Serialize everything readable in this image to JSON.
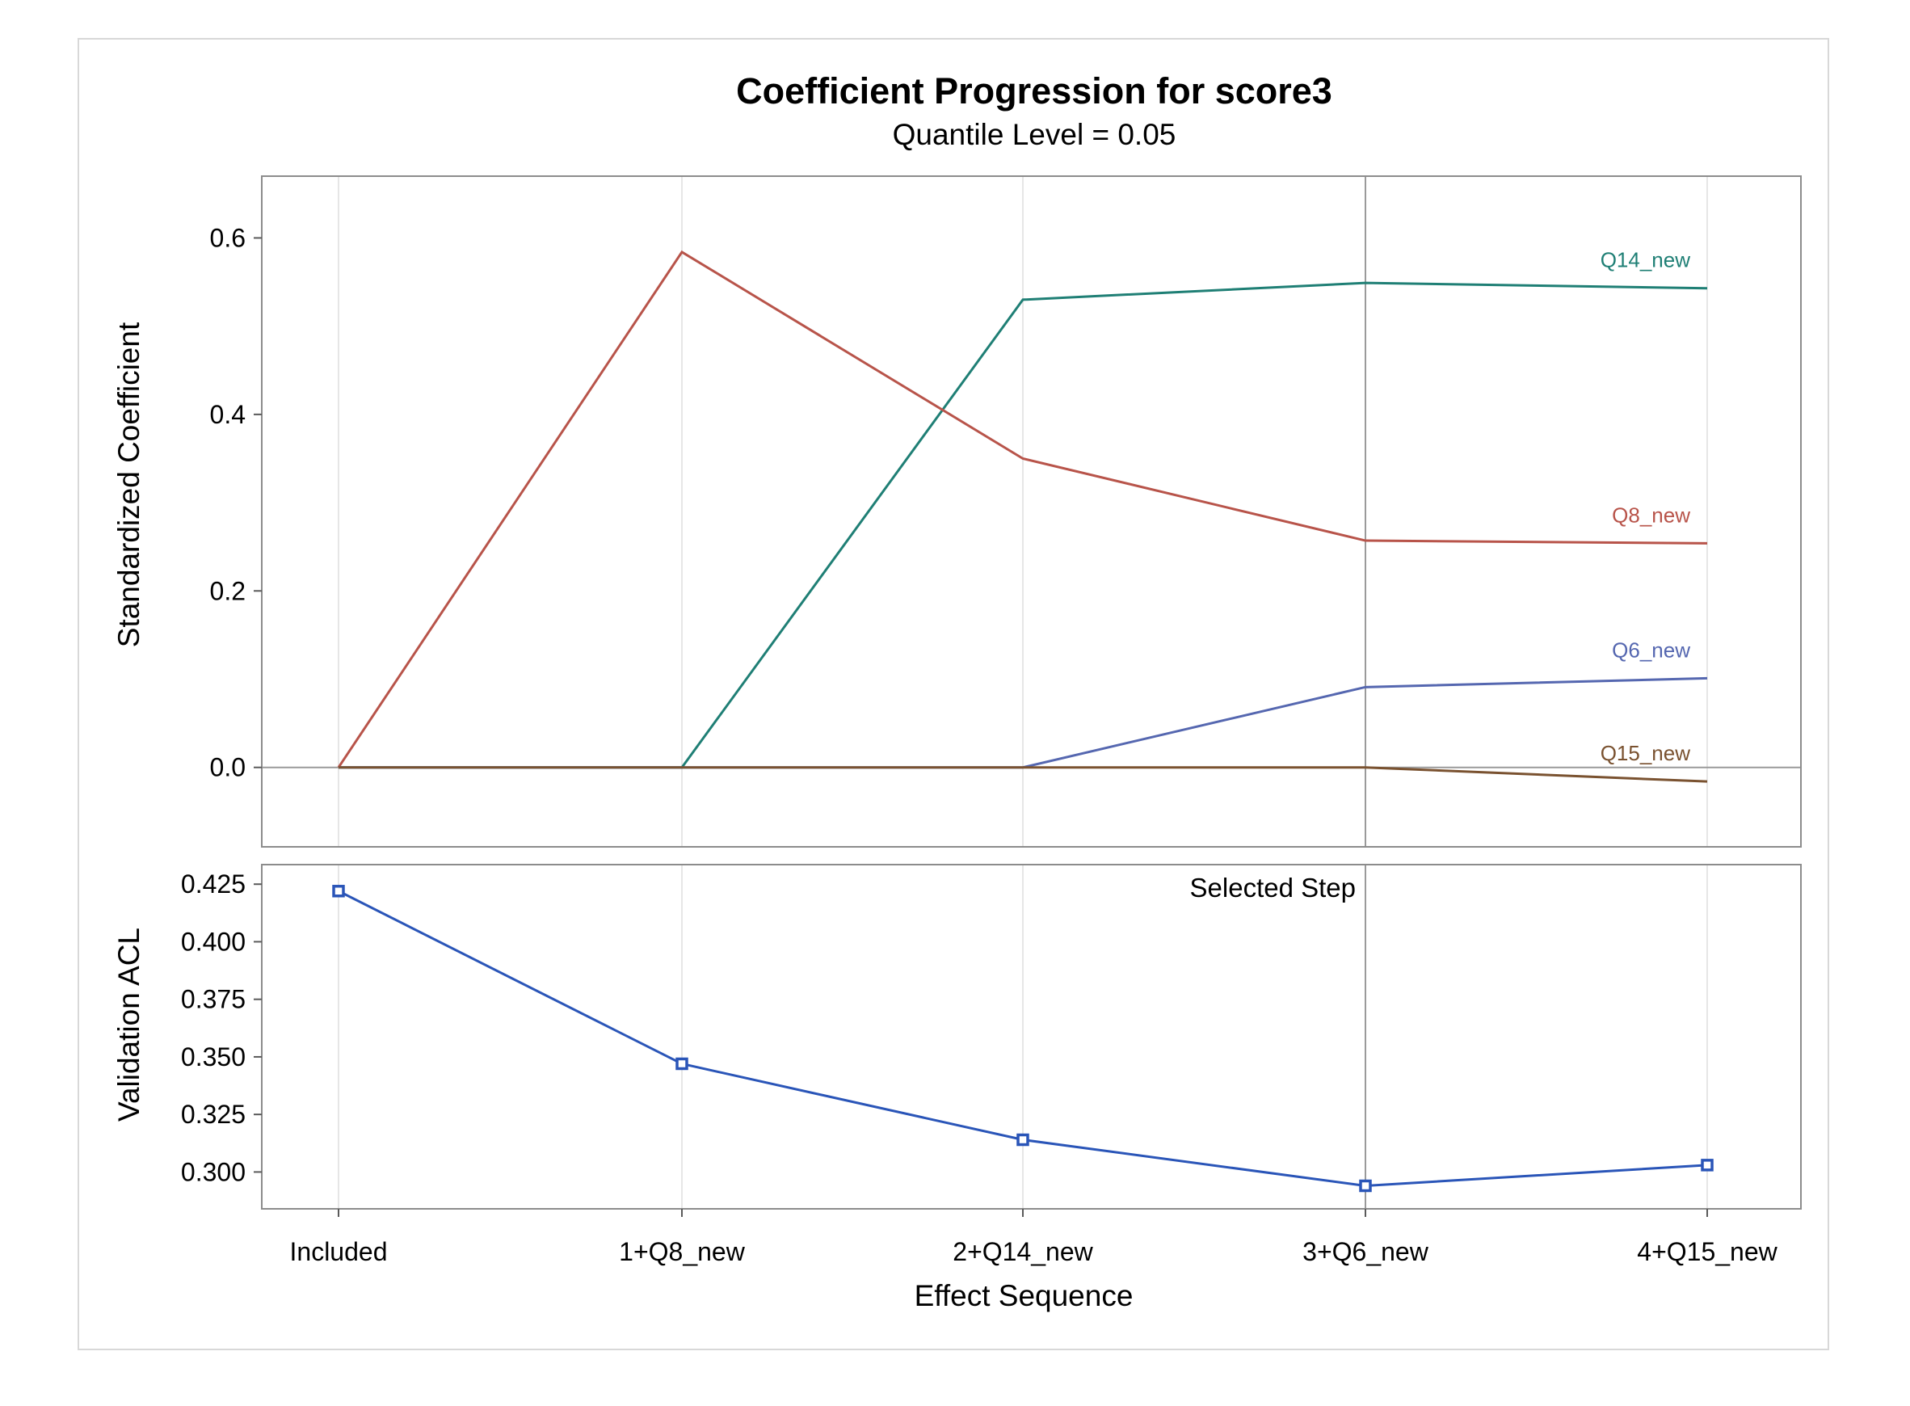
{
  "chart_data": {
    "type": "line",
    "title": "Coefficient Progression for score3",
    "subtitle": "Quantile Level = 0.05",
    "xlabel": "Effect Sequence",
    "categories": [
      "Included",
      "1+Q8_new",
      "2+Q14_new",
      "3+Q6_new",
      "4+Q15_new"
    ],
    "selected_step": "3+Q6_new",
    "selected_step_label": "Selected Step",
    "panels": [
      {
        "ylabel": "Standardized Coefficient",
        "ylim": [
          -0.09,
          0.67
        ],
        "yticks": [
          0.0,
          0.2,
          0.4,
          0.6
        ],
        "tick_labels": [
          "0.0",
          "0.2",
          "0.4",
          "0.6"
        ],
        "reference_line_y": 0.0,
        "series": [
          {
            "name": "Q14_new",
            "color": "#1f7f75",
            "values": [
              0.0,
              0.0,
              0.53,
              0.549,
              0.543
            ]
          },
          {
            "name": "Q8_new",
            "color": "#b8544a",
            "values": [
              0.0,
              0.584,
              0.35,
              0.257,
              0.254
            ]
          },
          {
            "name": "Q6_new",
            "color": "#5567b0",
            "values": [
              0.0,
              0.0,
              0.0,
              0.091,
              0.101
            ]
          },
          {
            "name": "Q15_new",
            "color": "#7a5230",
            "values": [
              0.0,
              0.0,
              0.0,
              0.0,
              -0.016
            ]
          }
        ]
      },
      {
        "ylabel": "Validation ACL",
        "ylim": [
          0.284,
          0.4335
        ],
        "yticks": [
          0.3,
          0.325,
          0.35,
          0.375,
          0.4,
          0.425
        ],
        "tick_labels": [
          "0.300",
          "0.325",
          "0.350",
          "0.375",
          "0.400",
          "0.425"
        ],
        "series": [
          {
            "name": "",
            "color": "#2a55b8",
            "marker": "square",
            "values": [
              0.422,
              0.347,
              0.314,
              0.294,
              0.303
            ]
          }
        ]
      }
    ],
    "grid": true
  }
}
